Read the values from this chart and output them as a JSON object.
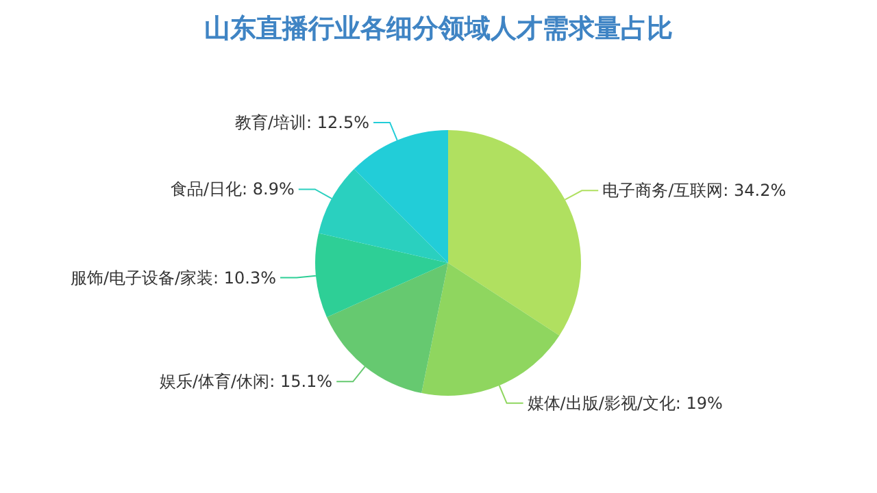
{
  "chart_data": {
    "type": "pie",
    "title": "山东直播行业各细分领域人才需求量占比",
    "categories": [
      "电子商务/互联网",
      "媒体/出版/影视/文化",
      "娱乐/体育/休闲",
      "服饰/电子设备/家装",
      "食品/日化",
      "教育/培训"
    ],
    "values": [
      34.2,
      19,
      15.1,
      10.3,
      8.9,
      12.5
    ],
    "value_labels": [
      "34.2%",
      "19%",
      "15.1%",
      "10.3%",
      "8.9%",
      "12.5%"
    ],
    "colors": [
      "#b0e060",
      "#8fd65f",
      "#66c970",
      "#2ecf96",
      "#2ad0bf",
      "#22cdd8"
    ],
    "legend": false
  }
}
